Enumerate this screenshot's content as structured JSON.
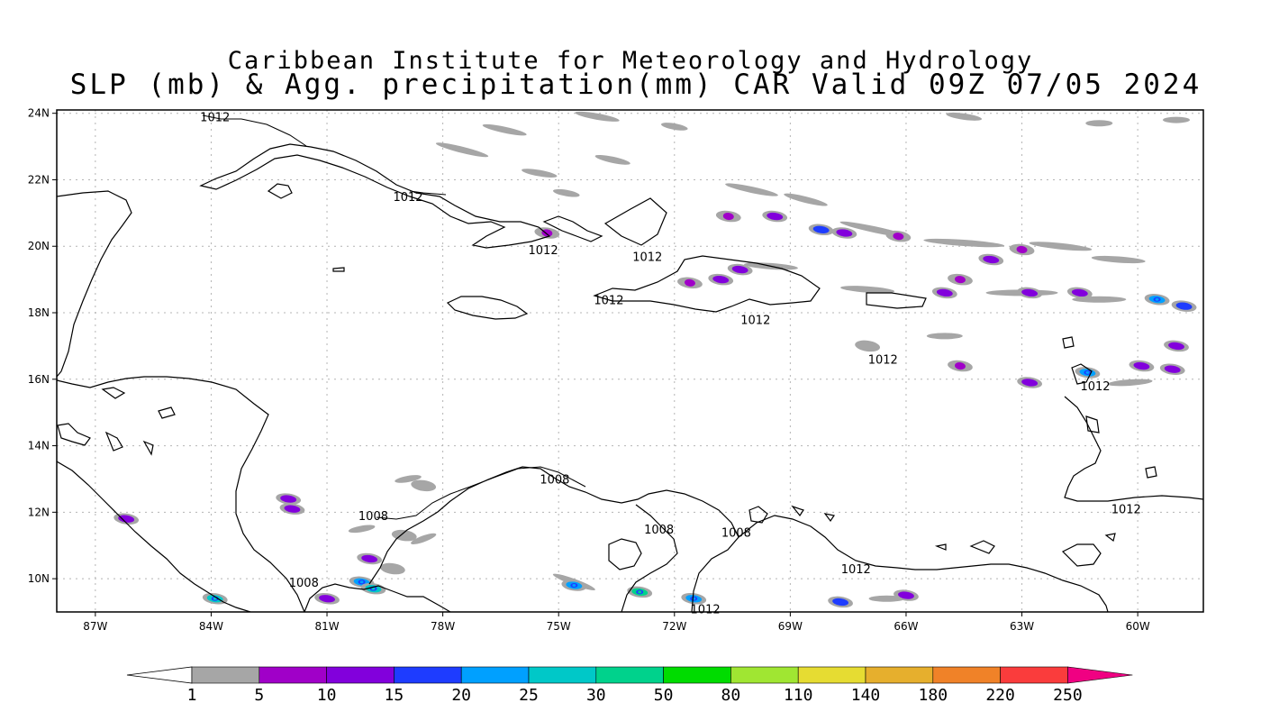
{
  "title": {
    "line1": "Caribbean Institute for Meteorology and Hydrology",
    "line2": "SLP (mb) & Agg. precipitation(mm) CAR Valid 09Z 07/05 2024"
  },
  "map": {
    "lon_range": [
      -88,
      -58.3
    ],
    "lat_range": [
      9,
      24.1
    ],
    "lat_ticks": [
      {
        "value": 24,
        "label": "24N"
      },
      {
        "value": 22,
        "label": "22N"
      },
      {
        "value": 20,
        "label": "20N"
      },
      {
        "value": 18,
        "label": "18N"
      },
      {
        "value": 16,
        "label": "16N"
      },
      {
        "value": 14,
        "label": "14N"
      },
      {
        "value": 12,
        "label": "12N"
      },
      {
        "value": 10,
        "label": "10N"
      }
    ],
    "lon_ticks": [
      {
        "value": -87,
        "label": "87W"
      },
      {
        "value": -84,
        "label": "84W"
      },
      {
        "value": -81,
        "label": "81W"
      },
      {
        "value": -78,
        "label": "78W"
      },
      {
        "value": -75,
        "label": "75W"
      },
      {
        "value": -72,
        "label": "72W"
      },
      {
        "value": -69,
        "label": "69W"
      },
      {
        "value": -66,
        "label": "66W"
      },
      {
        "value": -63,
        "label": "63W"
      },
      {
        "value": -60,
        "label": "60W"
      }
    ],
    "isobars": [
      {
        "label": "1012",
        "lon": -83.9,
        "lat": 23.9
      },
      {
        "label": "1012",
        "lon": -78.9,
        "lat": 21.5
      },
      {
        "label": "1012",
        "lon": -75.4,
        "lat": 19.9
      },
      {
        "label": "1012",
        "lon": -72.7,
        "lat": 19.7
      },
      {
        "label": "1012",
        "lon": -73.7,
        "lat": 18.4
      },
      {
        "label": "1012",
        "lon": -69.9,
        "lat": 17.8
      },
      {
        "label": "1012",
        "lon": -66.6,
        "lat": 16.6
      },
      {
        "label": "1012",
        "lon": -61.1,
        "lat": 15.8
      },
      {
        "label": "1012",
        "lon": -60.3,
        "lat": 12.1
      },
      {
        "label": "1008",
        "lon": -75.1,
        "lat": 13.0
      },
      {
        "label": "1008",
        "lon": -79.8,
        "lat": 11.9
      },
      {
        "label": "1008",
        "lon": -72.4,
        "lat": 11.5
      },
      {
        "label": "1008",
        "lon": -70.4,
        "lat": 11.4
      },
      {
        "label": "1008",
        "lon": -81.6,
        "lat": 9.9
      },
      {
        "label": "1012",
        "lon": -67.3,
        "lat": 10.3
      },
      {
        "label": "1012",
        "lon": -71.2,
        "lat": 9.1
      }
    ],
    "precip_cells": [
      {
        "lon": -75.3,
        "lat": 20.4,
        "level": 5
      },
      {
        "lon": -70.3,
        "lat": 19.3,
        "level": 10
      },
      {
        "lon": -70.8,
        "lat": 19.0,
        "level": 10
      },
      {
        "lon": -71.6,
        "lat": 18.9,
        "level": 5
      },
      {
        "lon": -69.4,
        "lat": 20.9,
        "level": 10
      },
      {
        "lon": -68.2,
        "lat": 20.5,
        "level": 15
      },
      {
        "lon": -67.6,
        "lat": 20.4,
        "level": 10
      },
      {
        "lon": -61.5,
        "lat": 18.6,
        "level": 10
      },
      {
        "lon": -62.8,
        "lat": 18.6,
        "level": 10
      },
      {
        "lon": -59.5,
        "lat": 18.4,
        "level": 20
      },
      {
        "lon": -58.8,
        "lat": 18.2,
        "level": 15
      },
      {
        "lon": -64.6,
        "lat": 19.0,
        "level": 5
      },
      {
        "lon": -65.0,
        "lat": 18.6,
        "level": 10
      },
      {
        "lon": -63.8,
        "lat": 19.6,
        "level": 10
      },
      {
        "lon": -59.0,
        "lat": 17.0,
        "level": 10
      },
      {
        "lon": -61.3,
        "lat": 16.2,
        "level": 20
      },
      {
        "lon": -59.9,
        "lat": 16.4,
        "level": 10
      },
      {
        "lon": -59.1,
        "lat": 16.3,
        "level": 10
      },
      {
        "lon": -62.8,
        "lat": 15.9,
        "level": 10
      },
      {
        "lon": -83.9,
        "lat": 9.4,
        "level": 25
      },
      {
        "lon": -80.1,
        "lat": 9.9,
        "level": 20
      },
      {
        "lon": -79.8,
        "lat": 9.7,
        "level": 25
      },
      {
        "lon": -79.9,
        "lat": 10.6,
        "level": 10
      },
      {
        "lon": -81.0,
        "lat": 9.4,
        "level": 10
      },
      {
        "lon": -81.9,
        "lat": 12.1,
        "level": 10
      },
      {
        "lon": -82.0,
        "lat": 12.4,
        "level": 10
      },
      {
        "lon": -86.2,
        "lat": 11.8,
        "level": 10
      },
      {
        "lon": -74.6,
        "lat": 9.8,
        "level": 20
      },
      {
        "lon": -72.9,
        "lat": 9.6,
        "level": 30
      },
      {
        "lon": -71.5,
        "lat": 9.4,
        "level": 20
      },
      {
        "lon": -67.7,
        "lat": 9.3,
        "level": 15
      },
      {
        "lon": -66.0,
        "lat": 9.5,
        "level": 10
      },
      {
        "lon": -78.5,
        "lat": 12.8,
        "level": 1
      },
      {
        "lon": -79.0,
        "lat": 11.3,
        "level": 1
      },
      {
        "lon": -79.3,
        "lat": 10.3,
        "level": 1
      },
      {
        "lon": -67.0,
        "lat": 17.0,
        "level": 1
      },
      {
        "lon": -64.6,
        "lat": 16.4,
        "level": 5
      },
      {
        "lon": -66.2,
        "lat": 20.3,
        "level": 5
      },
      {
        "lon": -63.0,
        "lat": 19.9,
        "level": 5
      },
      {
        "lon": -70.6,
        "lat": 20.9,
        "level": 5
      }
    ],
    "precip_swaths": [
      {
        "lon": -77.5,
        "lat": 22.9,
        "len": 60,
        "rot": 14
      },
      {
        "lon": -76.4,
        "lat": 23.5,
        "len": 50,
        "rot": 12
      },
      {
        "lon": -75.5,
        "lat": 22.2,
        "len": 40,
        "rot": 10
      },
      {
        "lon": -74.8,
        "lat": 21.6,
        "len": 30,
        "rot": 10
      },
      {
        "lon": -73.6,
        "lat": 22.6,
        "len": 40,
        "rot": 12
      },
      {
        "lon": -74.0,
        "lat": 23.9,
        "len": 50,
        "rot": 10
      },
      {
        "lon": -72.0,
        "lat": 23.6,
        "len": 30,
        "rot": 10
      },
      {
        "lon": -70.0,
        "lat": 21.7,
        "len": 60,
        "rot": 12
      },
      {
        "lon": -68.6,
        "lat": 21.4,
        "len": 50,
        "rot": 14
      },
      {
        "lon": -66.8,
        "lat": 20.5,
        "len": 80,
        "rot": 12
      },
      {
        "lon": -64.5,
        "lat": 20.1,
        "len": 90,
        "rot": 4
      },
      {
        "lon": -62.0,
        "lat": 20.0,
        "len": 70,
        "rot": 6
      },
      {
        "lon": -60.5,
        "lat": 19.6,
        "len": 60,
        "rot": 4
      },
      {
        "lon": -63.0,
        "lat": 18.6,
        "len": 80,
        "rot": 0
      },
      {
        "lon": -61.0,
        "lat": 18.4,
        "len": 60,
        "rot": 0
      },
      {
        "lon": -67.0,
        "lat": 18.7,
        "len": 60,
        "rot": 4
      },
      {
        "lon": -65.0,
        "lat": 17.3,
        "len": 40,
        "rot": 0
      },
      {
        "lon": -60.2,
        "lat": 15.9,
        "len": 50,
        "rot": -4
      },
      {
        "lon": -69.5,
        "lat": 19.4,
        "len": 60,
        "rot": 4
      },
      {
        "lon": -78.5,
        "lat": 11.2,
        "len": 30,
        "rot": -20
      },
      {
        "lon": -80.1,
        "lat": 11.5,
        "len": 30,
        "rot": -10
      },
      {
        "lon": -74.6,
        "lat": 9.9,
        "len": 50,
        "rot": 20
      },
      {
        "lon": -66.5,
        "lat": 9.4,
        "len": 40,
        "rot": 0
      },
      {
        "lon": -78.9,
        "lat": 13.0,
        "len": 30,
        "rot": -10
      },
      {
        "lon": -59.0,
        "lat": 23.8,
        "len": 30,
        "rot": 0
      },
      {
        "lon": -64.5,
        "lat": 23.9,
        "len": 40,
        "rot": 8
      },
      {
        "lon": -61.0,
        "lat": 23.7,
        "len": 30,
        "rot": 0
      }
    ]
  },
  "colorbar": {
    "labels": [
      "1",
      "5",
      "10",
      "15",
      "20",
      "25",
      "30",
      "50",
      "80",
      "110",
      "140",
      "180",
      "220",
      "250"
    ],
    "colors": [
      "#a6a6a6",
      "#a000c8",
      "#8200dc",
      "#1e3cff",
      "#00a0ff",
      "#00c8c8",
      "#00d28c",
      "#00dc00",
      "#a0e632",
      "#e6dc32",
      "#e6af2d",
      "#f08228",
      "#fa3c3c",
      "#f00082"
    ],
    "under_color": "#ffffff",
    "over_color": "#f00082"
  }
}
